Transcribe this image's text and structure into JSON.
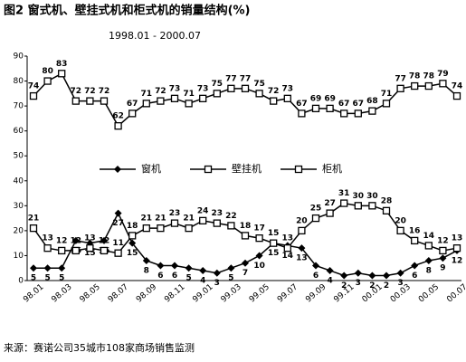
{
  "chart_data": {
    "type": "line",
    "title": "图2 窗式机、壁挂式机和柜式机的销量结构(%)",
    "subtitle": "1998.01 - 2000.07",
    "source": "来源：赛诺公司35城市108家商场销售监测",
    "categories": [
      "98.01",
      null,
      "98.03",
      null,
      "98.05",
      null,
      "98.07",
      null,
      "98.09",
      null,
      "98.11",
      null,
      "99.01",
      null,
      "99.03",
      null,
      "99.05",
      null,
      "99.07",
      null,
      "99.09",
      null,
      "99.11",
      null,
      "00.01",
      null,
      "00.03",
      null,
      "00.05",
      null,
      "00.07"
    ],
    "series": [
      {
        "name": "窗机",
        "color": "#000000",
        "marker": "diamond",
        "values": [
          5,
          5,
          5,
          16,
          15,
          16,
          27,
          15,
          8,
          6,
          6,
          5,
          4,
          3,
          5,
          7,
          10,
          15,
          14,
          13,
          6,
          4,
          2,
          3,
          2,
          2,
          3,
          6,
          8,
          9,
          12
        ]
      },
      {
        "name": "壁挂机",
        "color": "#000000",
        "marker": "square",
        "values": [
          74,
          80,
          83,
          72,
          72,
          72,
          62,
          67,
          71,
          72,
          73,
          71,
          73,
          75,
          77,
          77,
          75,
          72,
          73,
          67,
          69,
          69,
          67,
          67,
          68,
          71,
          77,
          78,
          78,
          79,
          74
        ]
      },
      {
        "name": "柜机",
        "color": "#000000",
        "marker": "square",
        "values": [
          21,
          13,
          12,
          12,
          13,
          12,
          11,
          18,
          21,
          21,
          23,
          21,
          24,
          23,
          22,
          18,
          17,
          15,
          13,
          20,
          25,
          27,
          31,
          30,
          30,
          28,
          20,
          16,
          14,
          12,
          13
        ]
      }
    ],
    "ylim": [
      0,
      90
    ],
    "yticks": [
      0,
      10,
      20,
      30,
      40,
      50,
      60,
      70,
      80,
      90
    ],
    "grid": false
  }
}
